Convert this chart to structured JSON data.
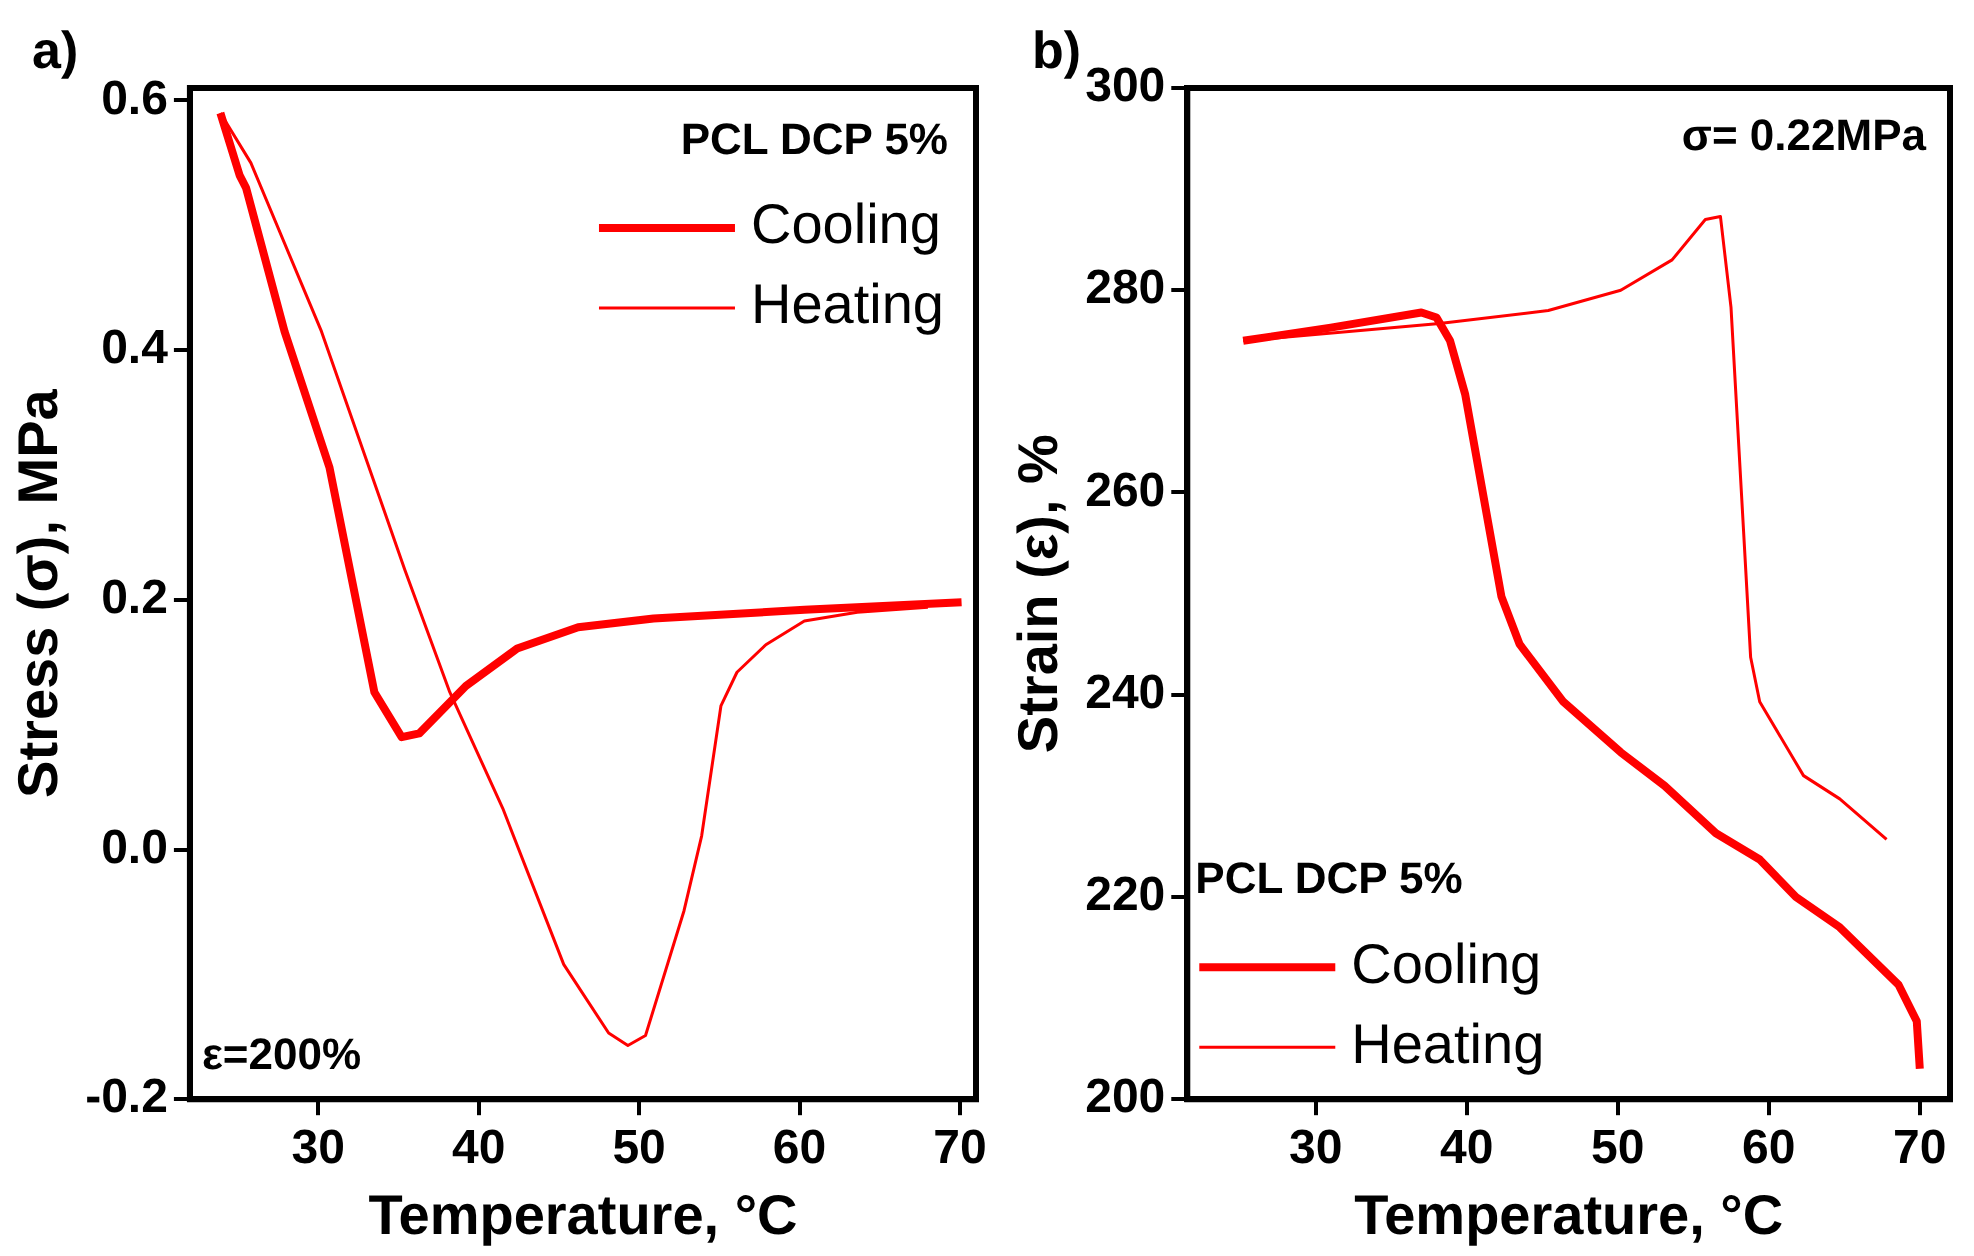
{
  "chart_data": [
    {
      "type": "line",
      "title": "a)",
      "xlabel": "Temperature, °C",
      "ylabel": "Stress (σ), MPa",
      "legend_title": "PCL DCP 5%",
      "legend": "top right",
      "grid": false,
      "annotations": [
        "ε=200%"
      ],
      "xlim": [
        22,
        71
      ],
      "xticks": [
        30,
        40,
        50,
        60,
        70
      ],
      "ylim": [
        -0.2,
        0.61
      ],
      "yticks": [
        {
          "value": -0.2,
          "label": "-0.2"
        },
        {
          "value": 0,
          "label": "0.0"
        },
        {
          "value": 0.2,
          "label": "0.2"
        },
        {
          "value": 0.4,
          "label": "0.4"
        },
        {
          "value": 0.6,
          "label": "0.6"
        }
      ],
      "series": [
        {
          "name": "Cooling",
          "color": "#ff0000",
          "x": [
            23.9,
            25.1,
            25.5,
            27.9,
            30.7,
            33.5,
            35.2,
            36.3,
            39.2,
            42.4,
            46.2,
            50.9,
            60.3,
            70.1
          ],
          "values": [
            0.59,
            0.54,
            0.53,
            0.415,
            0.306,
            0.126,
            0.09,
            0.093,
            0.131,
            0.161,
            0.178,
            0.185,
            0.192,
            0.198
          ]
        },
        {
          "name": "Heating",
          "color": "#ff0000",
          "x": [
            23.9,
            25.8,
            30.2,
            35.4,
            38.2,
            41.5,
            45.3,
            48.1,
            49.3,
            50.4,
            52.8,
            53.9,
            55.1,
            56.1,
            57.9,
            60.3,
            63.6,
            68.0
          ],
          "values": [
            0.59,
            0.55,
            0.415,
            0.224,
            0.126,
            0.033,
            -0.092,
            -0.147,
            -0.157,
            -0.149,
            -0.049,
            0.011,
            0.115,
            0.142,
            0.164,
            0.183,
            0.19,
            0.194
          ]
        }
      ]
    },
    {
      "type": "line",
      "title": "b)",
      "xlabel": "Temperature, °C",
      "ylabel": "Strain (ε), %",
      "legend_title": "PCL DCP 5%",
      "legend": "bottom left",
      "grid": false,
      "annotations": [
        "σ= 0.22MPa"
      ],
      "xlim": [
        21.5,
        72
      ],
      "xticks": [
        30,
        40,
        50,
        60,
        70
      ],
      "ylim": [
        200,
        300
      ],
      "yticks": [
        200,
        220,
        240,
        260,
        280,
        300
      ],
      "series": [
        {
          "name": "Cooling",
          "color": "#ff0000",
          "x": [
            25.2,
            31.0,
            37.0,
            38.0,
            38.9,
            39.9,
            41.1,
            42.3,
            43.5,
            46.4,
            50.2,
            53.1,
            56.5,
            59.4,
            61.8,
            64.7,
            68.6,
            69.8,
            70.0
          ],
          "values": [
            275.0,
            276.3,
            277.8,
            277.3,
            275.0,
            269.7,
            259.7,
            249.7,
            245.0,
            239.3,
            234.3,
            231.0,
            226.3,
            223.7,
            220.0,
            217.0,
            211.3,
            207.7,
            203.0
          ]
        },
        {
          "name": "Heating",
          "color": "#ff0000",
          "x": [
            25.2,
            38.2,
            45.4,
            50.2,
            53.6,
            55.8,
            56.8,
            57.5,
            58.2,
            58.8,
            59.4,
            62.3,
            64.7,
            67.8
          ],
          "values": [
            275.0,
            276.7,
            278.0,
            280.0,
            283.0,
            287.0,
            287.3,
            278.3,
            259.7,
            243.7,
            239.3,
            232.0,
            229.7,
            225.7
          ]
        }
      ]
    }
  ]
}
